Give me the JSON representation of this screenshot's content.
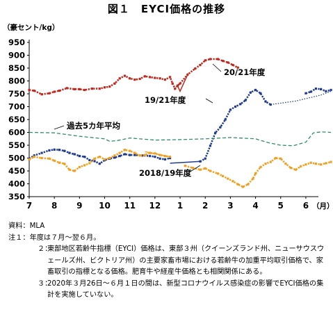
{
  "title": "図１　EYCI価格の推移",
  "chart_data": {
    "type": "line",
    "ylabel": "（豪セント/kg）",
    "xlabel": "（月）",
    "ylim": [
      350,
      950
    ],
    "yticks": [
      350,
      400,
      450,
      500,
      550,
      600,
      650,
      700,
      750,
      800,
      850,
      900,
      950
    ],
    "x_ticks": [
      "7",
      "8",
      "9",
      "10",
      "11",
      "12",
      "1",
      "2",
      "3",
      "4",
      "5",
      "6"
    ],
    "grid": "none",
    "annotations": [
      "20/21年度",
      "19/21年度",
      "過去5カ年平均",
      "2018/19年度"
    ],
    "series": [
      {
        "name": "20/21年度",
        "color": "#c0281e",
        "style": "dotted-markers",
        "points": [
          [
            0,
            765
          ],
          [
            0.2,
            762
          ],
          [
            0.5,
            748
          ],
          [
            0.8,
            752
          ],
          [
            1.0,
            758
          ],
          [
            1.2,
            762
          ],
          [
            1.5,
            772
          ],
          [
            1.8,
            768
          ],
          [
            2.0,
            768
          ],
          [
            2.2,
            765
          ],
          [
            2.5,
            770
          ],
          [
            2.8,
            770
          ],
          [
            3.0,
            775
          ],
          [
            3.2,
            778
          ],
          [
            3.4,
            790
          ],
          [
            3.6,
            810
          ],
          [
            3.8,
            820
          ],
          [
            4.0,
            810
          ],
          [
            4.2,
            805
          ],
          [
            4.4,
            808
          ],
          [
            4.6,
            818
          ],
          [
            4.8,
            815
          ],
          [
            5.0,
            812
          ],
          [
            5.2,
            810
          ],
          [
            5.4,
            805
          ],
          [
            5.6,
            815
          ],
          [
            5.7,
            790
          ],
          [
            5.8,
            770
          ],
          [
            5.9,
            782
          ],
          [
            6.0,
            790
          ],
          [
            6.3,
            825
          ],
          [
            6.6,
            848
          ],
          [
            6.8,
            862
          ],
          [
            7.0,
            880
          ],
          [
            7.2,
            885
          ],
          [
            7.5,
            885
          ],
          [
            7.7,
            878
          ],
          [
            7.9,
            872
          ],
          [
            8.1,
            862
          ],
          [
            8.3,
            852
          ]
        ]
      },
      {
        "name": "20/21年度 (gap)",
        "color": "#c0281e",
        "style": "line",
        "points": [
          [
            5.9,
            782
          ],
          [
            6.0,
            760
          ],
          [
            6.3,
            825
          ]
        ]
      },
      {
        "name": "19/21年度",
        "color": "#1f3a8f",
        "style": "dotted-markers",
        "points": [
          [
            6.8,
            487
          ],
          [
            7.0,
            498
          ],
          [
            7.2,
            548
          ],
          [
            7.4,
            598
          ],
          [
            7.6,
            620
          ],
          [
            7.8,
            650
          ],
          [
            8.0,
            688
          ],
          [
            8.2,
            700
          ],
          [
            8.4,
            710
          ],
          [
            8.6,
            725
          ],
          [
            8.8,
            755
          ],
          [
            9.0,
            765
          ],
          [
            9.2,
            752
          ],
          [
            9.4,
            720
          ],
          [
            9.6,
            708
          ]
        ]
      },
      {
        "name": "19/21年度 (gap)",
        "color": "#1f3a8f",
        "style": "thin-dotted",
        "points": [
          [
            9.6,
            708
          ],
          [
            10.6,
            722
          ],
          [
            11.6,
            745
          ],
          [
            12.0,
            760
          ]
        ]
      },
      {
        "name": "19/21年度 (end)",
        "color": "#1f3a8f",
        "style": "dotted-markers",
        "points": [
          [
            11.0,
            752
          ],
          [
            11.2,
            758
          ],
          [
            11.4,
            770
          ],
          [
            11.6,
            768
          ],
          [
            11.8,
            760
          ],
          [
            12.0,
            765
          ]
        ]
      },
      {
        "name": "19/21年度 (early)",
        "color": "#1f3a8f",
        "style": "dotted-markers",
        "points": [
          [
            0,
            498
          ],
          [
            0.2,
            510
          ],
          [
            0.5,
            520
          ],
          [
            0.8,
            530
          ],
          [
            1.0,
            533
          ],
          [
            1.2,
            532
          ],
          [
            1.4,
            528
          ],
          [
            1.6,
            520
          ],
          [
            1.8,
            515
          ],
          [
            2.0,
            508
          ],
          [
            2.2,
            505
          ],
          [
            2.4,
            492
          ],
          [
            2.6,
            488
          ],
          [
            2.8,
            478
          ],
          [
            3.0,
            492
          ],
          [
            3.2,
            498
          ],
          [
            3.4,
            502
          ],
          [
            3.6,
            508
          ],
          [
            3.8,
            515
          ],
          [
            4.0,
            512
          ],
          [
            4.2,
            512
          ],
          [
            4.5,
            510
          ],
          [
            4.8,
            508
          ],
          [
            5.0,
            505
          ],
          [
            5.2,
            498
          ],
          [
            5.4,
            495
          ],
          [
            5.6,
            500
          ]
        ]
      },
      {
        "name": "19/21年度 (early gap)",
        "color": "#1f3a8f",
        "style": "line",
        "points": [
          [
            5.6,
            480
          ],
          [
            6.8,
            487
          ]
        ]
      },
      {
        "name": "過去5カ年平均",
        "color": "#2e8b6e",
        "style": "dashed",
        "points": [
          [
            0,
            600
          ],
          [
            1.0,
            598
          ],
          [
            2.0,
            585
          ],
          [
            3.0,
            575
          ],
          [
            3.2,
            565
          ],
          [
            3.5,
            568
          ],
          [
            4.0,
            578
          ],
          [
            5.0,
            570
          ],
          [
            6.0,
            572
          ],
          [
            7.0,
            575
          ],
          [
            8.0,
            580
          ],
          [
            9.0,
            575
          ],
          [
            9.5,
            560
          ],
          [
            10.0,
            550
          ],
          [
            10.5,
            548
          ],
          [
            11.0,
            562
          ],
          [
            11.3,
            598
          ],
          [
            11.6,
            602
          ],
          [
            12.0,
            600
          ]
        ]
      },
      {
        "name": "2018/19年度",
        "color": "#f0a020",
        "style": "dotted-markers",
        "points": [
          [
            0,
            495
          ],
          [
            0.2,
            505
          ],
          [
            0.5,
            500
          ],
          [
            0.8,
            498
          ],
          [
            1.0,
            490
          ],
          [
            1.2,
            482
          ],
          [
            1.4,
            478
          ],
          [
            1.6,
            455
          ],
          [
            1.8,
            450
          ],
          [
            2.0,
            465
          ],
          [
            2.2,
            472
          ],
          [
            2.4,
            480
          ],
          [
            2.6,
            498
          ],
          [
            2.8,
            505
          ],
          [
            3.0,
            495
          ],
          [
            3.2,
            500
          ],
          [
            3.4,
            510
          ],
          [
            3.6,
            520
          ],
          [
            3.8,
            532
          ],
          [
            4.0,
            528
          ],
          [
            4.2,
            520
          ],
          [
            4.4,
            510
          ],
          [
            4.6,
            512
          ],
          [
            4.8,
            520
          ],
          [
            5.0,
            518
          ],
          [
            5.2,
            512
          ],
          [
            5.4,
            508
          ],
          [
            5.6,
            505
          ]
        ]
      },
      {
        "name": "2018/19年度 (gap)",
        "color": "#f0a020",
        "style": "line",
        "points": [
          [
            4.6,
            525
          ],
          [
            5.6,
            505
          ]
        ]
      },
      {
        "name": "2018/19年度 (late)",
        "color": "#f0a020",
        "style": "dotted-markers",
        "points": [
          [
            6.2,
            470
          ],
          [
            6.5,
            462
          ],
          [
            6.8,
            455
          ],
          [
            7.0,
            460
          ],
          [
            7.2,
            450
          ],
          [
            7.5,
            440
          ],
          [
            7.7,
            430
          ],
          [
            7.9,
            420
          ],
          [
            8.1,
            410
          ],
          [
            8.3,
            398
          ],
          [
            8.5,
            388
          ],
          [
            8.7,
            398
          ],
          [
            8.9,
            420
          ],
          [
            9.0,
            440
          ],
          [
            9.2,
            465
          ],
          [
            9.4,
            478
          ],
          [
            9.6,
            485
          ],
          [
            9.8,
            500
          ],
          [
            10.0,
            498
          ],
          [
            10.2,
            478
          ],
          [
            10.4,
            462
          ],
          [
            10.6,
            455
          ],
          [
            10.8,
            468
          ],
          [
            11.0,
            475
          ],
          [
            11.2,
            482
          ],
          [
            11.4,
            478
          ],
          [
            11.6,
            475
          ],
          [
            11.8,
            480
          ],
          [
            12.0,
            485
          ]
        ]
      }
    ]
  },
  "notes": [
    {
      "key": "資料：",
      "text": "MLA",
      "level": 0
    },
    {
      "key": "注１：",
      "text": "年度は７月～翌６月。",
      "level": 0
    },
    {
      "key": "２：",
      "text": "東部地区若齢牛指標（EYCI）価格は、東部３州（クイーンズランド州、ニューサウスウェールズ州、ビクトリア州）の主要家畜市場における若齢牛の加重平均取引価格で、家畜取引の指標となる価格。肥育牛や経産牛価格とも相関関係にある。",
      "level": 1
    },
    {
      "key": "３：",
      "text": "2020年３月26日～６月１日の間は、新型コロナウイルス感染症の影響でEYCI価格の集計を実施していない。",
      "level": 1
    }
  ]
}
